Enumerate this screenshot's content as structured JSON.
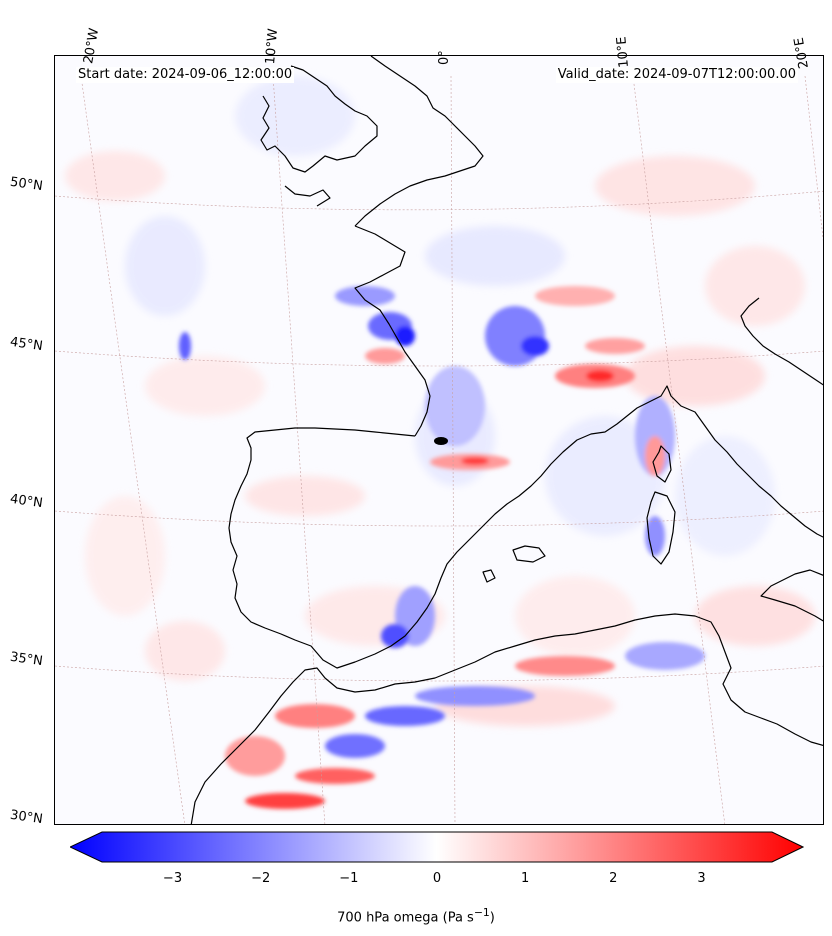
{
  "header": {
    "start_date": "Start date: 2024-09-06_12:00:00",
    "valid_date": "Valid_date: 2024-09-07T12:00:00.00"
  },
  "longitude_labels": [
    "20°W",
    "10°W",
    "0°",
    "10°E",
    "20°E"
  ],
  "latitude_labels": [
    "50°N",
    "45°N",
    "40°N",
    "35°N",
    "30°N"
  ],
  "colorbar": {
    "label_text": "700 hPa omega (Pa s",
    "label_sup": "−1",
    "label_end": ")",
    "ticks": [
      "−3",
      "−2",
      "−1",
      "0",
      "1",
      "2",
      "3"
    ],
    "tick_values": [
      -3,
      -2,
      -1,
      0,
      1,
      2,
      3
    ],
    "range": [
      -3.8,
      3.8
    ],
    "colormap": "bwr",
    "min_color": "#0000ff",
    "mid_color": "#ffffff",
    "max_color": "#ff0000"
  },
  "map": {
    "projection": "lambert-conformal",
    "coastline_color": "#000000",
    "gridline_color": "#c8a0a0"
  }
}
